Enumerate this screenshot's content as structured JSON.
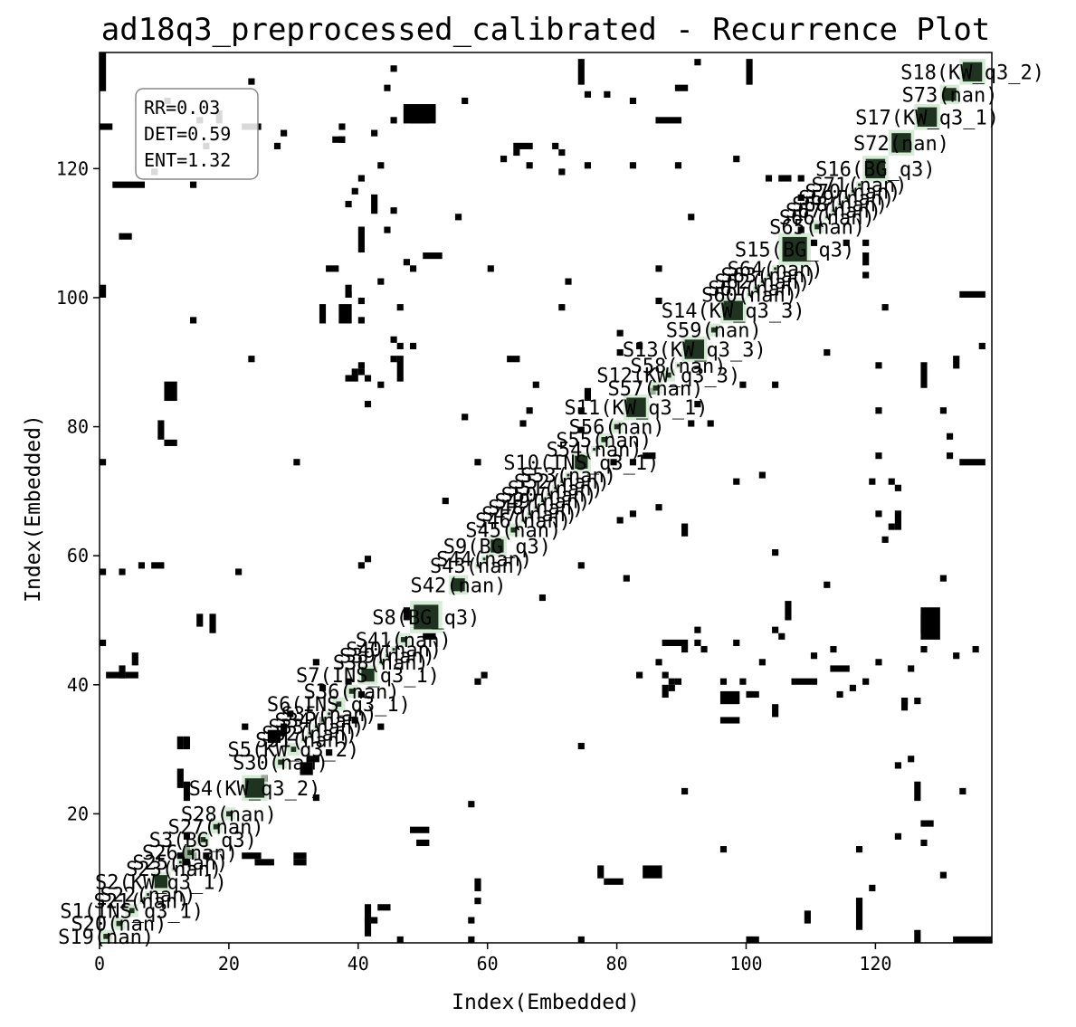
{
  "chart_data": {
    "type": "heatmap",
    "title": "ad18q3_preprocessed_calibrated - Recurrence Plot",
    "xlabel": "Index(Embedded)",
    "ylabel": "Index(Embedded)",
    "xlim": [
      0,
      138
    ],
    "ylim": [
      0,
      138
    ],
    "xticks": [
      0,
      20,
      40,
      60,
      80,
      100,
      120
    ],
    "yticks": [
      20,
      40,
      60,
      80,
      100,
      120
    ],
    "stats": [
      "RR=0.03",
      "DET=0.59",
      "ENT=1.32"
    ],
    "colors": {
      "recurrence": "#000000",
      "segment_fill": "#c8e6c8",
      "segment_core": "#1e3320",
      "background": "#ffffff"
    },
    "segments": [
      {
        "label": "S19(nan)",
        "start": 0,
        "end": 2
      },
      {
        "label": "S20(nan)",
        "start": 2,
        "end": 4
      },
      {
        "label": "S1(INS_q3_1)",
        "start": 4,
        "end": 6
      },
      {
        "label": "S21(nan)",
        "start": 6,
        "end": 7
      },
      {
        "label": "S22(nan)",
        "start": 7,
        "end": 8
      },
      {
        "label": "S2(KW_q3_1)",
        "start": 8,
        "end": 11
      },
      {
        "label": "S23(nan)",
        "start": 11,
        "end": 12
      },
      {
        "label": "S25(nan)",
        "start": 12,
        "end": 13
      },
      {
        "label": "S26(nan)",
        "start": 13,
        "end": 15
      },
      {
        "label": "S3(BG_q3)",
        "start": 15,
        "end": 17
      },
      {
        "label": "S27(nan)",
        "start": 17,
        "end": 19
      },
      {
        "label": "S28(nan)",
        "start": 19,
        "end": 21
      },
      {
        "label": "S4(KW_q3_2)",
        "start": 22,
        "end": 26
      },
      {
        "label": "S30(nan)",
        "start": 27,
        "end": 29
      },
      {
        "label": "S5(KW_q3_2)",
        "start": 29,
        "end": 31
      },
      {
        "label": "S31(nan)",
        "start": 31,
        "end": 32
      },
      {
        "label": "S32(nan)",
        "start": 32,
        "end": 33
      },
      {
        "label": "S33(nan)",
        "start": 33,
        "end": 34
      },
      {
        "label": "S34(nan)",
        "start": 34,
        "end": 35
      },
      {
        "label": "S35(nan)",
        "start": 35,
        "end": 36
      },
      {
        "label": "S6(INS_q3_1)",
        "start": 36,
        "end": 38
      },
      {
        "label": "S36(nan)",
        "start": 38,
        "end": 40
      },
      {
        "label": "S7(INS_q3_1)",
        "start": 40,
        "end": 43
      },
      {
        "label": "S38(nan)",
        "start": 43,
        "end": 44
      },
      {
        "label": "S39(nan)",
        "start": 44,
        "end": 45
      },
      {
        "label": "S40(nan)",
        "start": 45,
        "end": 46
      },
      {
        "label": "S41(nan)",
        "start": 46,
        "end": 48
      },
      {
        "label": "S8(BG_q3)",
        "start": 48,
        "end": 53
      },
      {
        "label": "S42(nan)",
        "start": 54,
        "end": 57
      },
      {
        "label": "S43(nan)",
        "start": 58,
        "end": 59
      },
      {
        "label": "S44(nan)",
        "start": 59,
        "end": 60
      },
      {
        "label": "S9(BG_q3)",
        "start": 60,
        "end": 63
      },
      {
        "label": "S45(nan)",
        "start": 63,
        "end": 65
      },
      {
        "label": "S46(nan)",
        "start": 65,
        "end": 66
      },
      {
        "label": "S47(nan)",
        "start": 66,
        "end": 67
      },
      {
        "label": "S48(nan)",
        "start": 67,
        "end": 68
      },
      {
        "label": "S49(nan)",
        "start": 68,
        "end": 69
      },
      {
        "label": "S50(nan)",
        "start": 69,
        "end": 70
      },
      {
        "label": "S51(nan)",
        "start": 70,
        "end": 71
      },
      {
        "label": "S52(nan)",
        "start": 71,
        "end": 72
      },
      {
        "label": "S53(nan)",
        "start": 72,
        "end": 73
      },
      {
        "label": "S10(INS_q3_1)",
        "start": 73,
        "end": 76
      },
      {
        "label": "S54(nan)",
        "start": 76,
        "end": 77
      },
      {
        "label": "S55(nan)",
        "start": 77,
        "end": 79
      },
      {
        "label": "S56(nan)",
        "start": 79,
        "end": 81
      },
      {
        "label": "S11(KW_q3_1)",
        "start": 81,
        "end": 85
      },
      {
        "label": "S57(nan)",
        "start": 85,
        "end": 87
      },
      {
        "label": "S12(KW_q3_3)",
        "start": 87,
        "end": 89
      },
      {
        "label": "S58(nan)",
        "start": 89,
        "end": 90
      },
      {
        "label": "S13(KW_q3_3)",
        "start": 90,
        "end": 94
      },
      {
        "label": "S59(nan)",
        "start": 94,
        "end": 96
      },
      {
        "label": "S14(KW_q3_3)",
        "start": 96,
        "end": 100
      },
      {
        "label": "S60(nan)",
        "start": 100,
        "end": 101
      },
      {
        "label": "S61(nan)",
        "start": 101,
        "end": 102
      },
      {
        "label": "S62(nan)",
        "start": 102,
        "end": 103
      },
      {
        "label": "S63(nan)",
        "start": 103,
        "end": 104
      },
      {
        "label": "S64(nan)",
        "start": 104,
        "end": 105
      },
      {
        "label": "S15(BG_q3)",
        "start": 105,
        "end": 110
      },
      {
        "label": "S65(nan)",
        "start": 110,
        "end": 112
      },
      {
        "label": "S66(nan)",
        "start": 112,
        "end": 113
      },
      {
        "label": "S67(nan)",
        "start": 113,
        "end": 114
      },
      {
        "label": "S68(nan)",
        "start": 114,
        "end": 115
      },
      {
        "label": "S69(nan)",
        "start": 115,
        "end": 116
      },
      {
        "label": "S70(nan)",
        "start": 116,
        "end": 117
      },
      {
        "label": "S71(nan)",
        "start": 117,
        "end": 118
      },
      {
        "label": "S16(BG_q3)",
        "start": 118,
        "end": 122
      },
      {
        "label": "S72(nan)",
        "start": 122,
        "end": 126
      },
      {
        "label": "S17(KW_q3_1)",
        "start": 126,
        "end": 130
      },
      {
        "label": "S73(nan)",
        "start": 130,
        "end": 133
      },
      {
        "label": "S18(KW_q3_2)",
        "start": 133,
        "end": 137
      }
    ],
    "recurrence_points": [
      [
        0,
        132,
        1,
        6
      ],
      [
        0,
        100,
        1,
        2
      ],
      [
        0,
        74,
        1,
        1
      ],
      [
        2,
        117,
        5,
        1
      ],
      [
        3,
        109,
        2,
        1
      ],
      [
        4,
        41,
        2,
        1
      ],
      [
        5,
        43,
        1,
        2
      ],
      [
        8,
        119,
        1,
        1
      ],
      [
        8,
        58,
        2,
        1
      ],
      [
        6,
        58,
        1,
        1
      ],
      [
        9,
        78,
        1,
        3
      ],
      [
        10,
        77,
        2,
        1
      ],
      [
        10,
        84,
        2,
        3
      ],
      [
        12,
        24,
        1,
        3
      ],
      [
        12,
        30,
        1,
        2
      ],
      [
        12,
        13,
        3,
        1
      ],
      [
        15,
        49,
        1,
        2
      ],
      [
        17,
        48,
        1,
        3
      ],
      [
        16,
        13,
        1,
        1
      ],
      [
        22,
        13,
        3,
        1
      ],
      [
        25,
        25,
        1,
        1
      ],
      [
        27,
        123,
        1,
        1
      ],
      [
        28,
        32,
        1,
        2
      ],
      [
        30,
        13,
        2,
        1
      ],
      [
        29,
        35,
        1,
        1
      ],
      [
        31,
        26,
        2,
        2
      ],
      [
        33,
        22,
        1,
        1
      ],
      [
        34,
        96,
        1,
        3
      ],
      [
        33,
        43,
        1,
        1
      ],
      [
        34,
        39,
        1,
        1
      ],
      [
        34,
        34,
        1,
        1
      ],
      [
        35,
        104,
        2,
        1
      ],
      [
        36,
        124,
        2,
        1
      ],
      [
        37,
        96,
        2,
        3
      ],
      [
        38,
        100,
        1,
        1
      ],
      [
        38,
        87,
        2,
        1
      ],
      [
        39,
        88,
        1,
        1
      ],
      [
        40,
        118,
        1,
        1
      ],
      [
        40,
        99,
        1,
        1
      ],
      [
        40,
        107,
        1,
        4
      ],
      [
        41,
        3,
        2,
        1
      ],
      [
        41,
        1,
        1,
        3
      ],
      [
        40,
        38,
        1,
        1
      ],
      [
        42,
        125,
        1,
        1
      ],
      [
        43,
        102,
        1,
        1
      ],
      [
        40,
        58,
        1,
        1
      ],
      [
        41,
        59,
        1,
        1
      ],
      [
        43,
        120,
        1,
        1
      ],
      [
        44,
        110,
        1,
        1
      ],
      [
        45,
        113,
        1,
        1
      ],
      [
        45,
        135,
        1,
        1
      ],
      [
        46,
        92,
        1,
        1
      ],
      [
        46,
        98,
        1,
        1
      ],
      [
        46,
        87,
        1,
        4
      ],
      [
        47,
        50,
        1,
        2
      ],
      [
        46,
        0,
        1,
        1
      ],
      [
        47,
        127,
        5,
        3
      ],
      [
        50,
        106,
        3,
        1
      ],
      [
        53,
        68,
        1,
        1
      ],
      [
        57,
        21,
        1,
        1
      ],
      [
        58,
        74,
        1,
        1
      ],
      [
        57,
        0,
        1,
        1
      ],
      [
        57,
        3,
        1,
        1
      ],
      [
        63,
        90,
        2,
        1
      ],
      [
        64,
        123,
        3,
        1
      ],
      [
        66,
        120,
        1,
        1
      ],
      [
        67,
        86,
        1,
        1
      ],
      [
        70,
        123,
        1,
        1
      ],
      [
        74,
        30,
        1,
        1
      ],
      [
        74,
        79,
        1,
        1
      ],
      [
        74,
        82,
        1,
        1
      ],
      [
        75,
        84,
        1,
        2
      ],
      [
        80,
        65,
        1,
        1
      ],
      [
        81,
        56,
        1,
        1
      ],
      [
        80,
        94,
        1,
        1
      ],
      [
        80,
        91,
        1,
        1
      ],
      [
        82,
        120,
        1,
        1
      ],
      [
        82,
        66,
        1,
        1
      ],
      [
        83,
        92,
        1,
        1
      ],
      [
        83,
        41,
        1,
        1
      ],
      [
        85,
        85,
        1,
        1
      ],
      [
        86,
        99,
        1,
        1
      ],
      [
        86,
        104,
        1,
        1
      ],
      [
        86,
        43,
        1,
        1
      ],
      [
        87,
        41,
        1,
        1
      ],
      [
        86,
        127,
        4,
        1
      ],
      [
        88,
        40,
        1,
        1
      ],
      [
        89,
        132,
        2,
        1
      ],
      [
        89,
        120,
        1,
        1
      ],
      [
        92,
        136,
        1,
        1
      ],
      [
        89,
        40,
        1,
        1
      ],
      [
        90,
        45,
        1,
        1
      ],
      [
        90,
        23,
        1,
        1
      ],
      [
        92,
        48,
        1,
        1
      ],
      [
        93,
        45,
        1,
        1
      ],
      [
        96,
        40,
        1,
        1
      ],
      [
        96,
        14,
        1,
        1
      ],
      [
        98,
        71,
        1,
        1
      ],
      [
        100,
        38,
        2,
        1
      ],
      [
        102,
        72,
        1,
        1
      ],
      [
        104,
        60,
        1,
        1
      ],
      [
        104,
        48,
        1,
        1
      ],
      [
        105,
        47,
        1,
        1
      ],
      [
        105,
        118,
        2,
        1
      ],
      [
        108,
        110,
        1,
        1
      ],
      [
        108,
        115,
        1,
        1
      ],
      [
        112,
        55,
        1,
        1
      ],
      [
        112,
        91,
        1,
        1
      ],
      [
        113,
        42,
        3,
        1
      ],
      [
        114,
        38,
        1,
        1
      ],
      [
        116,
        39,
        1,
        1
      ],
      [
        117,
        14,
        1,
        1
      ],
      [
        118,
        103,
        1,
        1
      ],
      [
        118,
        108,
        1,
        1
      ],
      [
        119,
        71,
        1,
        1
      ],
      [
        120,
        75,
        1,
        1
      ],
      [
        121,
        98,
        1,
        1
      ],
      [
        121,
        62,
        1,
        1
      ],
      [
        122,
        71,
        1,
        1
      ],
      [
        122,
        64,
        1,
        1
      ],
      [
        123,
        16,
        1,
        1
      ],
      [
        126,
        22,
        1,
        3
      ],
      [
        127,
        48,
        2,
        3
      ],
      [
        127,
        18,
        2,
        1
      ],
      [
        127,
        15,
        1,
        1
      ],
      [
        126,
        37,
        1,
        1
      ],
      [
        127,
        45,
        1,
        1
      ],
      [
        130,
        56,
        1,
        1
      ],
      [
        130,
        10,
        1,
        1
      ],
      [
        130,
        82,
        1,
        1
      ],
      [
        131,
        75,
        1,
        1
      ],
      [
        131,
        78,
        1,
        1
      ],
      [
        133,
        100,
        4,
        1
      ],
      [
        133,
        74,
        4,
        1
      ],
      [
        126,
        0,
        1,
        2
      ],
      [
        132,
        44,
        1,
        1
      ],
      [
        133,
        23,
        1,
        1
      ],
      [
        125,
        28,
        1,
        1
      ],
      [
        124,
        37,
        1,
        1
      ]
    ]
  }
}
